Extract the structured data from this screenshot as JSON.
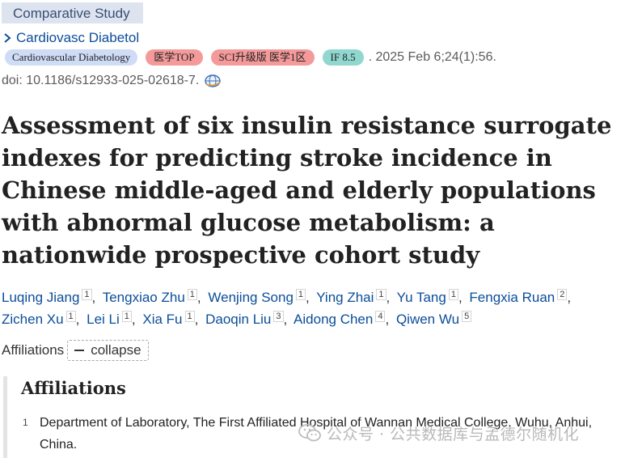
{
  "publication_type": "Comparative Study",
  "journal": {
    "short_name": "Cardiovasc Diabetol",
    "full_name": "Cardiovascular Diabetology"
  },
  "badges": [
    {
      "label": "医学TOP",
      "color": "#f49a9a"
    },
    {
      "label": "SCI升级版 医学1区",
      "color": "#f49a9a"
    },
    {
      "label": "IF 8.5",
      "color": "#8fd7cf"
    }
  ],
  "pub_date": ". 2025 Feb 6;24(1):56.",
  "doi": "doi: 10.1186/s12933-025-02618-7.",
  "title": "Assessment of six insulin resistance surrogate indexes for predicting stroke incidence in Chinese middle-aged and elderly populations with abnormal glucose metabolism: a nationwide prospective cohort study",
  "authors": [
    {
      "name": "Luqing Jiang",
      "aff": "1"
    },
    {
      "name": "Tengxiao Zhu",
      "aff": "1"
    },
    {
      "name": "Wenjing Song",
      "aff": "1"
    },
    {
      "name": "Ying Zhai",
      "aff": "1"
    },
    {
      "name": "Yu Tang",
      "aff": "1"
    },
    {
      "name": "Fengxia Ruan",
      "aff": "2"
    },
    {
      "name": "Zichen Xu",
      "aff": "1"
    },
    {
      "name": "Lei Li",
      "aff": "1"
    },
    {
      "name": "Xia Fu",
      "aff": "1"
    },
    {
      "name": "Daoqin Liu",
      "aff": "3"
    },
    {
      "name": "Aidong Chen",
      "aff": "4"
    },
    {
      "name": "Qiwen Wu",
      "aff": "5"
    }
  ],
  "affiliations_label": "Affiliations",
  "collapse_label": "collapse",
  "affiliations_heading": "Affiliations",
  "affiliations": [
    {
      "num": "1",
      "text": "Department of Laboratory, The First Affiliated Hospital of Wannan Medical College, Wuhu, Anhui, China."
    }
  ],
  "watermark": "公众号 · 公共数据库与孟德尔随机化",
  "colors": {
    "link": "#0b4d9a",
    "pub_type_bg": "#dde4f0",
    "journal_badge_bg": "#cfdcf6"
  }
}
